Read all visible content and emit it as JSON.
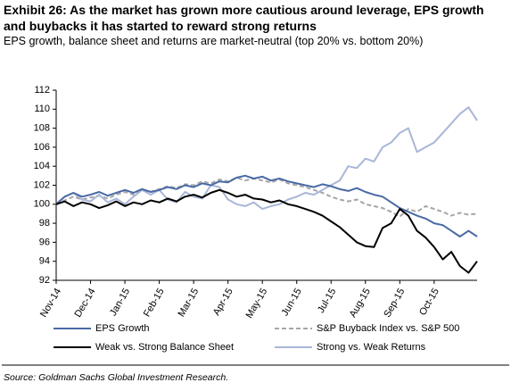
{
  "chart_data": {
    "type": "line",
    "title": "Exhibit 26: As the market has grown more cautious around leverage, EPS growth and buybacks it has started to reward strong returns",
    "subtitle": "EPS growth, balance sheet and returns are market-neutral (top 20% vs. bottom 20%)",
    "source": "Source: Goldman Sachs Global Investment Research.",
    "categories": [
      "Nov-14",
      null,
      null,
      null,
      "Dec-14",
      null,
      null,
      null,
      "Jan-15",
      null,
      null,
      null,
      "Feb-15",
      null,
      null,
      null,
      "Mar-15",
      null,
      null,
      null,
      "Apr-15",
      null,
      null,
      null,
      "May-15",
      null,
      null,
      null,
      "Jun-15",
      null,
      null,
      null,
      "Jul-15",
      null,
      null,
      null,
      "Aug-15",
      null,
      null,
      null,
      "Sep-15",
      null,
      null,
      null,
      "Oct-15",
      null,
      null,
      null,
      null,
      null
    ],
    "series": [
      {
        "name": "EPS Growth",
        "color": "#4a6aa5",
        "dashed": false,
        "values": [
          100,
          100.8,
          101.2,
          100.8,
          101,
          101.3,
          100.9,
          101.2,
          101.5,
          101.2,
          101.6,
          101.3,
          101.5,
          101.8,
          101.6,
          102,
          101.8,
          102.2,
          102,
          102.4,
          102.3,
          102.8,
          103,
          102.7,
          102.9,
          102.5,
          102.7,
          102.4,
          102.2,
          102,
          101.8,
          102.1,
          101.9,
          101.6,
          101.4,
          101.7,
          101.3,
          101,
          100.8,
          100.2,
          99.6,
          99.2,
          98.8,
          98.5,
          98,
          97.8,
          97.2,
          96.6,
          97.2,
          96.6
        ]
      },
      {
        "name": "S&P Buyback Index vs. S&P 500",
        "color": "#a6a6a6",
        "dashed": true,
        "values": [
          100,
          100.4,
          100.8,
          100.5,
          100.7,
          100.9,
          100.6,
          101,
          101.3,
          101,
          101.5,
          101.3,
          101.6,
          101.9,
          101.7,
          102.1,
          102,
          102.4,
          102.2,
          102.6,
          102.4,
          102.8,
          102.5,
          102.7,
          102.5,
          102.3,
          102.6,
          102.2,
          102,
          101.8,
          101.5,
          101.2,
          100.8,
          100.5,
          100.3,
          100.5,
          100,
          99.8,
          99.6,
          99.2,
          98.7,
          99.5,
          99.2,
          99.8,
          99.5,
          99.2,
          98.8,
          99.1,
          98.9,
          99
        ]
      },
      {
        "name": "Weak vs. Strong Balance Sheet",
        "color": "#000000",
        "dashed": false,
        "values": [
          100,
          100.3,
          99.8,
          100.2,
          100,
          99.6,
          99.9,
          100.3,
          99.8,
          100.2,
          100,
          100.4,
          100.2,
          100.6,
          100.3,
          100.8,
          101,
          100.7,
          101.2,
          101.5,
          101.2,
          100.8,
          101,
          100.6,
          100.5,
          100.2,
          100.4,
          100,
          99.8,
          99.5,
          99.2,
          98.8,
          98.2,
          97.6,
          96.8,
          96,
          95.6,
          95.5,
          97.5,
          98,
          99.5,
          98.8,
          97.2,
          96.5,
          95.5,
          94.2,
          95,
          93.5,
          92.8,
          94
        ]
      },
      {
        "name": "Strong vs. Weak Returns",
        "color": "#a9b6d8",
        "dashed": false,
        "values": [
          100,
          100.8,
          101.2,
          100.5,
          100.3,
          101,
          100.2,
          100.6,
          100,
          100.8,
          101.5,
          101,
          101.5,
          100.5,
          100.2,
          101.3,
          100.8,
          100.6,
          102,
          101.8,
          100.5,
          100,
          99.8,
          100.2,
          99.5,
          99.8,
          100,
          100.5,
          100.8,
          101.2,
          101,
          101.5,
          102,
          102.5,
          104,
          103.8,
          104.8,
          104.5,
          106,
          106.5,
          107.5,
          108,
          105.5,
          106,
          106.5,
          107.5,
          108.5,
          109.5,
          110.2,
          108.8
        ]
      }
    ],
    "ylim": [
      92,
      112
    ],
    "yticks": [
      92,
      94,
      96,
      98,
      100,
      102,
      104,
      106,
      108,
      110,
      112
    ]
  }
}
